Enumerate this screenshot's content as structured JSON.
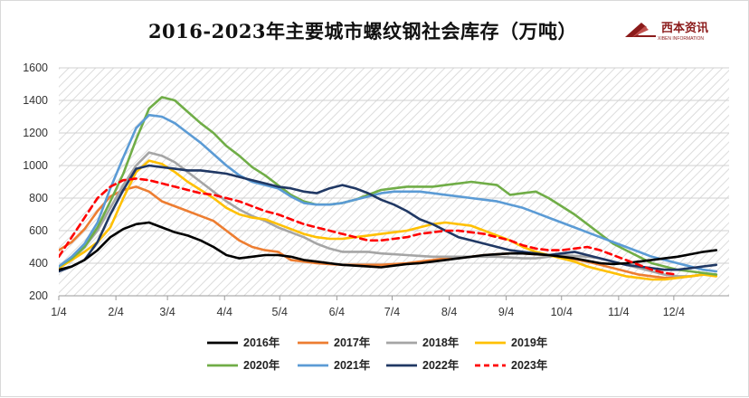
{
  "chart_data": {
    "type": "line",
    "title": "2016-2023年主要城市螺纹钢社会库存（万吨）",
    "logo_text": "西本资讯",
    "logo_subtext": "XIBEN INFORMATION",
    "xlabel": "",
    "ylabel": "",
    "ylim": [
      200,
      1600
    ],
    "yticks": [
      200,
      400,
      600,
      800,
      1000,
      1200,
      1400,
      1600
    ],
    "xlim": [
      0,
      52
    ],
    "xticks": [
      {
        "label": "1/4",
        "x": 0
      },
      {
        "label": "2/4",
        "x": 4.43
      },
      {
        "label": "3/4",
        "x": 8.43
      },
      {
        "label": "4/4",
        "x": 12.86
      },
      {
        "label": "5/4",
        "x": 17.14
      },
      {
        "label": "6/4",
        "x": 21.57
      },
      {
        "label": "7/4",
        "x": 25.86
      },
      {
        "label": "8/4",
        "x": 30.29
      },
      {
        "label": "9/4",
        "x": 34.71
      },
      {
        "label": "10/4",
        "x": 39
      },
      {
        "label": "11/4",
        "x": 43.43
      },
      {
        "label": "12/4",
        "x": 47.71
      }
    ],
    "legend_position": "bottom",
    "plot_background": "diagonal-hatch",
    "series": [
      {
        "name": "2016年",
        "color": "#000000",
        "dash": false,
        "x_start": 0,
        "values": [
          360,
          380,
          420,
          480,
          560,
          610,
          640,
          650,
          620,
          590,
          570,
          540,
          500,
          450,
          430,
          440,
          450,
          450,
          440,
          420,
          410,
          400,
          390,
          385,
          380,
          375,
          385,
          395,
          400,
          410,
          420,
          430,
          440,
          450,
          455,
          460,
          460,
          455,
          450,
          440,
          430,
          415,
          400,
          395,
          400,
          410,
          420,
          430,
          440,
          455,
          470,
          480
        ]
      },
      {
        "name": "2017年",
        "color": "#ED7D31",
        "dash": false,
        "x_start": 0,
        "values": [
          480,
          530,
          610,
          720,
          810,
          850,
          870,
          840,
          780,
          750,
          720,
          690,
          660,
          600,
          540,
          500,
          480,
          470,
          420,
          410,
          400,
          395,
          390,
          390,
          390,
          390,
          395,
          400,
          410,
          420,
          430,
          440,
          440,
          450,
          455,
          460,
          460,
          455,
          450,
          440,
          425,
          410,
          390,
          370,
          350,
          330,
          320,
          310,
          310,
          320,
          330,
          330
        ]
      },
      {
        "name": "2018年",
        "color": "#A5A5A5",
        "dash": false,
        "x_start": 0,
        "values": [
          370,
          420,
          500,
          600,
          740,
          880,
          1000,
          1080,
          1060,
          1020,
          960,
          900,
          840,
          780,
          730,
          690,
          660,
          620,
          590,
          560,
          520,
          490,
          470,
          470,
          470,
          460,
          455,
          450,
          445,
          440,
          440,
          440,
          440,
          440,
          440,
          435,
          430,
          430,
          440,
          450,
          445,
          440,
          430,
          410,
          390,
          370,
          350,
          330,
          320,
          320,
          330,
          330
        ]
      },
      {
        "name": "2019年",
        "color": "#FFC000",
        "dash": false,
        "x_start": 0,
        "values": [
          370,
          420,
          470,
          530,
          620,
          800,
          960,
          1030,
          1010,
          960,
          900,
          850,
          800,
          740,
          700,
          680,
          670,
          640,
          610,
          580,
          560,
          550,
          550,
          560,
          570,
          580,
          590,
          600,
          620,
          640,
          650,
          640,
          630,
          600,
          570,
          540,
          500,
          470,
          450,
          430,
          410,
          380,
          360,
          340,
          320,
          310,
          300,
          300,
          310,
          320,
          330,
          320
        ]
      },
      {
        "name": "2020年",
        "color": "#70AD47",
        "dash": false,
        "x_start": 0,
        "values": [
          380,
          430,
          500,
          620,
          780,
          950,
          1160,
          1350,
          1420,
          1400,
          1330,
          1260,
          1200,
          1120,
          1060,
          990,
          940,
          880,
          820,
          780,
          760,
          760,
          770,
          790,
          820,
          850,
          860,
          870,
          870,
          870,
          880,
          890,
          900,
          890,
          880,
          820,
          830,
          840,
          800,
          750,
          700,
          640,
          580,
          520,
          480,
          440,
          400,
          380,
          360,
          350,
          340,
          330
        ]
      },
      {
        "name": "2021年",
        "color": "#5B9BD5",
        "dash": false,
        "x_start": 0,
        "values": [
          380,
          440,
          520,
          650,
          860,
          1050,
          1230,
          1310,
          1300,
          1260,
          1200,
          1140,
          1070,
          1000,
          940,
          900,
          880,
          860,
          810,
          770,
          760,
          760,
          770,
          790,
          810,
          830,
          840,
          840,
          840,
          830,
          820,
          810,
          800,
          790,
          780,
          760,
          740,
          710,
          680,
          650,
          620,
          590,
          560,
          530,
          500,
          470,
          440,
          420,
          400,
          380,
          360,
          350
        ]
      },
      {
        "name": "2022年",
        "color": "#203864",
        "dash": false,
        "x_start": 0,
        "values": [
          350,
          380,
          420,
          530,
          700,
          850,
          980,
          1000,
          990,
          980,
          970,
          970,
          960,
          950,
          930,
          910,
          890,
          870,
          860,
          840,
          830,
          860,
          880,
          860,
          830,
          790,
          760,
          720,
          670,
          640,
          600,
          560,
          540,
          520,
          500,
          480,
          470,
          460,
          450,
          460,
          470,
          450,
          430,
          410,
          390,
          380,
          370,
          360,
          360,
          370,
          380,
          390
        ]
      },
      {
        "name": "2023年",
        "color": "#FF0000",
        "dash": true,
        "x_start": 0,
        "values": [
          440,
          560,
          680,
          800,
          870,
          910,
          920,
          910,
          890,
          870,
          850,
          830,
          820,
          800,
          780,
          750,
          720,
          700,
          670,
          640,
          620,
          600,
          580,
          560,
          540,
          540,
          550,
          560,
          580,
          590,
          600,
          600,
          590,
          580,
          560,
          540,
          510,
          490,
          480,
          480,
          490,
          500,
          480,
          450,
          420,
          390,
          360,
          340,
          330
        ]
      }
    ]
  }
}
